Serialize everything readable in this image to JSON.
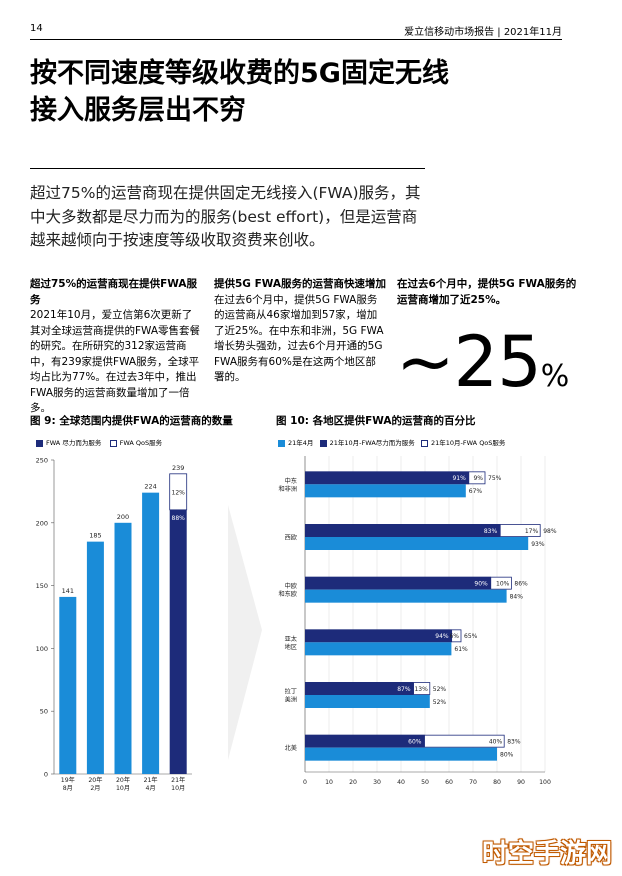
{
  "header": {
    "page_number": "14",
    "report_title": "爱立信移动市场报告 | 2021年11月"
  },
  "title": "按不同速度等级收费的5G固定无线接入服务层出不穷",
  "lead": "超过75%的运营商现在提供固定无线接入(FWA)服务，其中大多数都是尽力而为的服务(best effort)，但是运营商越来越倾向于按速度等级收取资费来创收。",
  "columns": [
    {
      "heading": "超过75%的运营商现在提供FWA服务",
      "body": "2021年10月，爱立信第6次更新了其对全球运营商提供的FWA零售套餐的研究。在所研究的312家运营商中，有239家提供FWA服务，全球平均占比为77%。在过去3年中，推出FWA服务的运营商数量增加了一倍多。"
    },
    {
      "heading": "提供5G FWA服务的运营商快速增加",
      "body": "在过去6个月中，提供5G FWA服务的运营商从46家增加到57家，增加了近25%。在中东和非洲，5G FWA增长势头强劲，过去6个月开通的5G FWA服务有60%是在这两个地区部署的。"
    },
    {
      "heading": "在过去6个月中，提供5G FWA服务的运营商增加了近25%。",
      "big_prefix": "~",
      "big_number": "25",
      "big_unit": "%"
    }
  ],
  "colors": {
    "light_blue": "#1a8cd8",
    "dark_navy": "#1d2b7a",
    "axis": "#333333"
  },
  "chart_data": [
    {
      "type": "bar",
      "title": "图 9: 全球范围内提供FWA的运营商的数量",
      "legend": [
        "FWA 尽力而为服务",
        "FWA QoS服务"
      ],
      "categories": [
        "19年8月",
        "20年2月",
        "20年10月",
        "21年4月",
        "21年10月"
      ],
      "values": [
        141,
        185,
        200,
        224,
        239
      ],
      "bar_colors": [
        "light_blue",
        "light_blue",
        "light_blue",
        "light_blue",
        "dark_navy"
      ],
      "last_split": {
        "best_effort_pct": "88%",
        "qos_pct": "12%"
      },
      "yticks": [
        0,
        50,
        100,
        150,
        200,
        250
      ],
      "ylim": [
        0,
        250
      ]
    },
    {
      "type": "bar",
      "title": "图 10: 各地区提供FWA的运营商的百分比",
      "legend": [
        "21年4月",
        "21年10月-FWA尽力而为服务",
        "21年10月-FWA QoS服务"
      ],
      "regions": [
        {
          "name": "中东\n和非洲",
          "apr21": 67,
          "oct21_total": 75,
          "best_effort_pct": 91,
          "qos_pct": 9
        },
        {
          "name": "西欧",
          "apr21": 93,
          "oct21_total": 98,
          "best_effort_pct": 83,
          "qos_pct": 17
        },
        {
          "name": "中欧\n和东欧",
          "apr21": 84,
          "oct21_total": 86,
          "best_effort_pct": 90,
          "qos_pct": 10
        },
        {
          "name": "亚太\n地区",
          "apr21": 61,
          "oct21_total": 65,
          "best_effort_pct": 94,
          "qos_pct": 6
        },
        {
          "name": "拉丁\n美洲",
          "apr21": 52,
          "oct21_total": 52,
          "best_effort_pct": 87,
          "qos_pct": 13
        },
        {
          "name": "北美",
          "apr21": 80,
          "oct21_total": 83,
          "best_effort_pct": 60,
          "qos_pct": 40
        }
      ],
      "xticks": [
        0,
        10,
        20,
        30,
        40,
        50,
        60,
        70,
        80,
        90,
        100
      ],
      "xlim": [
        0,
        100
      ]
    }
  ],
  "watermark": "时空手游网"
}
